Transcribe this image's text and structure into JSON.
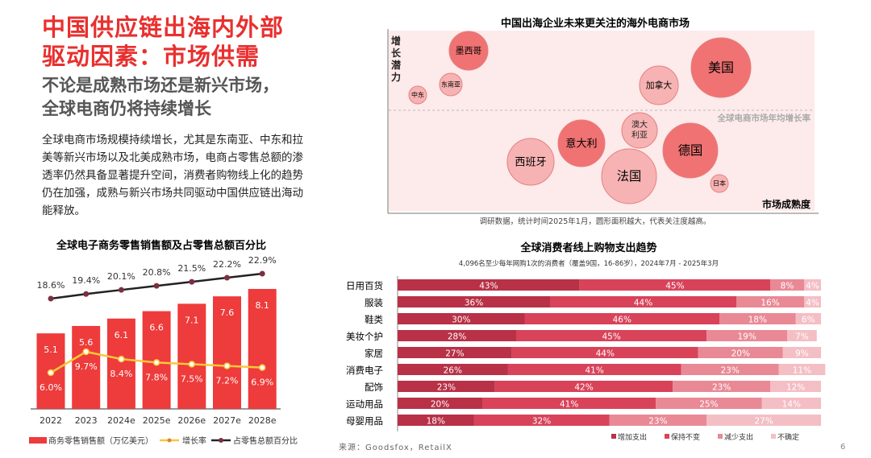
{
  "left": {
    "title_line1": "中国供应链出海内外部",
    "title_line2": "驱动因素：市场供需",
    "subtitle_line1": "不论是成熟市场还是新兴市场，",
    "subtitle_line2": "全球电商仍将持续增长",
    "paragraph": "全球电商市场规模持续增长，尤其是东南亚、中东和拉美等新兴市场以及北美成熟市场，电商占零售总额的渗透率仍然具备显著提升空间，消费者购物线上化的趋势仍在加强，成熟与新兴市场共同驱动中国供应链出海动能释放。"
  },
  "source": "来源：Goodsfox，RetailX",
  "page_number": "6",
  "colors": {
    "accent": "#e8302f",
    "bar": "#ee3b3b",
    "growth": "#f7c83a",
    "share": "#222222"
  },
  "chart_data": [
    {
      "type": "bar",
      "title": "全球电子商务零售销售额及占零售总额百分比",
      "categories": [
        "2022",
        "2023",
        "2024e",
        "2025e",
        "2026e",
        "2027e",
        "2028e"
      ],
      "series": [
        {
          "name": "商务零售销售额（万亿美元）",
          "type": "bar",
          "values": [
            5.1,
            5.6,
            6.1,
            6.6,
            7.1,
            7.6,
            8.1
          ]
        },
        {
          "name": "增长率",
          "type": "line",
          "unit": "%",
          "values": [
            6.0,
            9.7,
            8.4,
            7.8,
            7.5,
            7.2,
            6.9
          ]
        },
        {
          "name": "占零售总额百分比",
          "type": "line",
          "unit": "%",
          "values": [
            18.6,
            19.4,
            20.1,
            20.8,
            21.5,
            22.2,
            22.9
          ]
        }
      ],
      "legend_placement": "bottom"
    },
    {
      "type": "scatter",
      "title": "中国出海企业未来更关注的海外电商市场",
      "xlabel": "市场成熟度",
      "ylabel": "增长潜力",
      "reference_line": "全球电商市场年均增长率",
      "note": "调研数据，统计时间2025年1月，圆形面积越大，代表关注度越高。",
      "points": [
        {
          "label": "墨西哥",
          "highlight": true
        },
        {
          "label": "东南亚",
          "highlight": false
        },
        {
          "label": "中东",
          "highlight": false
        },
        {
          "label": "美国",
          "highlight": true
        },
        {
          "label": "加拿大",
          "highlight": false
        },
        {
          "label": "澳大利亚",
          "highlight": false
        },
        {
          "label": "意大利",
          "highlight": true
        },
        {
          "label": "西班牙",
          "highlight": false
        },
        {
          "label": "法国",
          "highlight": false
        },
        {
          "label": "德国",
          "highlight": true
        },
        {
          "label": "日本",
          "highlight": false
        }
      ]
    },
    {
      "type": "bar",
      "stacked": true,
      "orientation": "horizontal",
      "title": "全球消费者线上购物支出趋势",
      "subtitle": "4,096名至少每年网购1次的消费者（覆盖9国，16-86岁），2024年7月 - 2025年3月",
      "categories": [
        "日用百货",
        "服装",
        "鞋类",
        "美妆个护",
        "家居",
        "消费电子",
        "配饰",
        "运动用品",
        "母婴用品"
      ],
      "series": [
        {
          "name": "增加支出",
          "color": "#b83147",
          "values": [
            43,
            36,
            30,
            28,
            27,
            26,
            23,
            20,
            18
          ]
        },
        {
          "name": "保持不变",
          "color": "#d8435a",
          "values": [
            45,
            44,
            46,
            45,
            44,
            41,
            42,
            41,
            32
          ]
        },
        {
          "name": "减少支出",
          "color": "#e98995",
          "values": [
            8,
            16,
            18,
            19,
            20,
            23,
            23,
            25,
            23
          ]
        },
        {
          "name": "不确定",
          "color": "#f4bec5",
          "values": [
            4,
            4,
            6,
            7,
            9,
            11,
            12,
            14,
            27
          ]
        }
      ],
      "legend_placement": "bottom-right"
    }
  ]
}
